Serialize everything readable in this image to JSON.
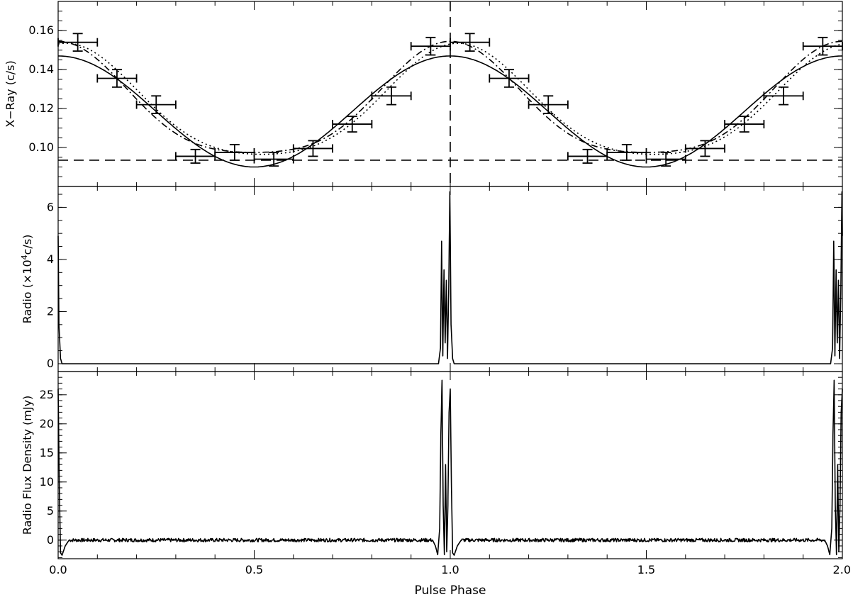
{
  "chart_data": [
    {
      "type": "scatter",
      "ylabel": "X−Ray (c/s)",
      "xlim": [
        0,
        2
      ],
      "ylim": [
        0.08,
        0.175
      ],
      "yticks": [
        "0.10",
        "0.12",
        "0.14",
        "0.16"
      ],
      "ytick_values": [
        0.1,
        0.12,
        0.14,
        0.16
      ],
      "points": [
        {
          "x": 0.05,
          "y": 0.154,
          "xerr": 0.05,
          "yerr": 0.0045
        },
        {
          "x": 0.15,
          "y": 0.1355,
          "xerr": 0.05,
          "yerr": 0.0045
        },
        {
          "x": 0.25,
          "y": 0.122,
          "xerr": 0.05,
          "yerr": 0.0045
        },
        {
          "x": 0.35,
          "y": 0.0955,
          "xerr": 0.05,
          "yerr": 0.0035
        },
        {
          "x": 0.45,
          "y": 0.0975,
          "xerr": 0.05,
          "yerr": 0.004
        },
        {
          "x": 0.55,
          "y": 0.094,
          "xerr": 0.05,
          "yerr": 0.0035
        },
        {
          "x": 0.65,
          "y": 0.0995,
          "xerr": 0.05,
          "yerr": 0.004
        },
        {
          "x": 0.75,
          "y": 0.112,
          "xerr": 0.05,
          "yerr": 0.004
        },
        {
          "x": 0.85,
          "y": 0.1265,
          "xerr": 0.05,
          "yerr": 0.0045
        },
        {
          "x": 0.95,
          "y": 0.152,
          "xerr": 0.05,
          "yerr": 0.0045
        },
        {
          "x": 1.05,
          "y": 0.154,
          "xerr": 0.05,
          "yerr": 0.0045
        },
        {
          "x": 1.15,
          "y": 0.1355,
          "xerr": 0.05,
          "yerr": 0.0045
        },
        {
          "x": 1.25,
          "y": 0.122,
          "xerr": 0.05,
          "yerr": 0.0045
        },
        {
          "x": 1.35,
          "y": 0.0955,
          "xerr": 0.05,
          "yerr": 0.0035
        },
        {
          "x": 1.45,
          "y": 0.0975,
          "xerr": 0.05,
          "yerr": 0.004
        },
        {
          "x": 1.55,
          "y": 0.094,
          "xerr": 0.05,
          "yerr": 0.0035
        },
        {
          "x": 1.65,
          "y": 0.0995,
          "xerr": 0.05,
          "yerr": 0.004
        },
        {
          "x": 1.75,
          "y": 0.112,
          "xerr": 0.05,
          "yerr": 0.004
        },
        {
          "x": 1.85,
          "y": 0.1265,
          "xerr": 0.05,
          "yerr": 0.0045
        },
        {
          "x": 1.95,
          "y": 0.152,
          "xerr": 0.05,
          "yerr": 0.0045
        }
      ],
      "lines": [
        {
          "style": "solid",
          "model": "sinusoid",
          "mean": 0.1185,
          "amplitude": 0.0285,
          "peak_phase": 0.0
        },
        {
          "style": "dotted",
          "model": "two-harmonic",
          "mean": 0.1205,
          "a1": 0.0285,
          "a2": 0.0045,
          "peak_phase": 0.02
        },
        {
          "style": "dash-dot",
          "model": "two-harmonic",
          "mean": 0.1205,
          "a1": 0.0285,
          "a2": 0.0055,
          "peak_phase": 0.0
        },
        {
          "style": "dashed",
          "model": "constant",
          "y": 0.0935
        }
      ],
      "vline": {
        "x": 1.0,
        "style": "dashed"
      }
    },
    {
      "type": "line",
      "ylabel": "Radio (×10⁴c/s)",
      "xlim": [
        0,
        2
      ],
      "ylim": [
        -0.3,
        6.8
      ],
      "yticks": [
        "0",
        "2",
        "4",
        "6"
      ],
      "ytick_values": [
        0,
        2,
        4,
        6
      ],
      "profile": {
        "baseline": 0,
        "x": [
          0.97,
          0.975,
          0.978,
          0.981,
          0.984,
          0.987,
          0.99,
          0.993,
          0.996,
          0.999,
          1.002,
          1.006,
          1.01
        ],
        "y": [
          0,
          0.6,
          4.7,
          0.3,
          3.6,
          0.8,
          3.2,
          0.2,
          2.7,
          6.6,
          1.5,
          0.2,
          0
        ]
      }
    },
    {
      "type": "line",
      "xlabel": "Pulse Phase",
      "ylabel": "Radio Flux Density (mJy)",
      "xlim": [
        0,
        2
      ],
      "ylim": [
        -3.2,
        29
      ],
      "yticks": [
        "0",
        "5",
        "10",
        "15",
        "20",
        "25"
      ],
      "ytick_values": [
        0,
        5,
        10,
        15,
        20,
        25
      ],
      "xticks": [
        "0.0",
        "0.5",
        "1.0",
        "1.5",
        "2.0"
      ],
      "xtick_values": [
        0,
        0.5,
        1.0,
        1.5,
        2.0
      ],
      "profile": {
        "baseline": 0,
        "noise_amplitude": 0.5,
        "x": [
          0.955,
          0.962,
          0.968,
          0.973,
          0.976,
          0.979,
          0.982,
          0.985,
          0.988,
          0.991,
          0.994,
          0.997,
          1.0,
          1.003,
          1.006,
          1.01,
          1.018,
          1.028
        ],
        "y": [
          0,
          -1.0,
          -2.5,
          2.0,
          18.0,
          27.5,
          6.0,
          -2.5,
          13.0,
          -2.0,
          6.0,
          22.0,
          26.0,
          9.0,
          -2.2,
          -2.6,
          -1.0,
          0
        ]
      }
    }
  ]
}
